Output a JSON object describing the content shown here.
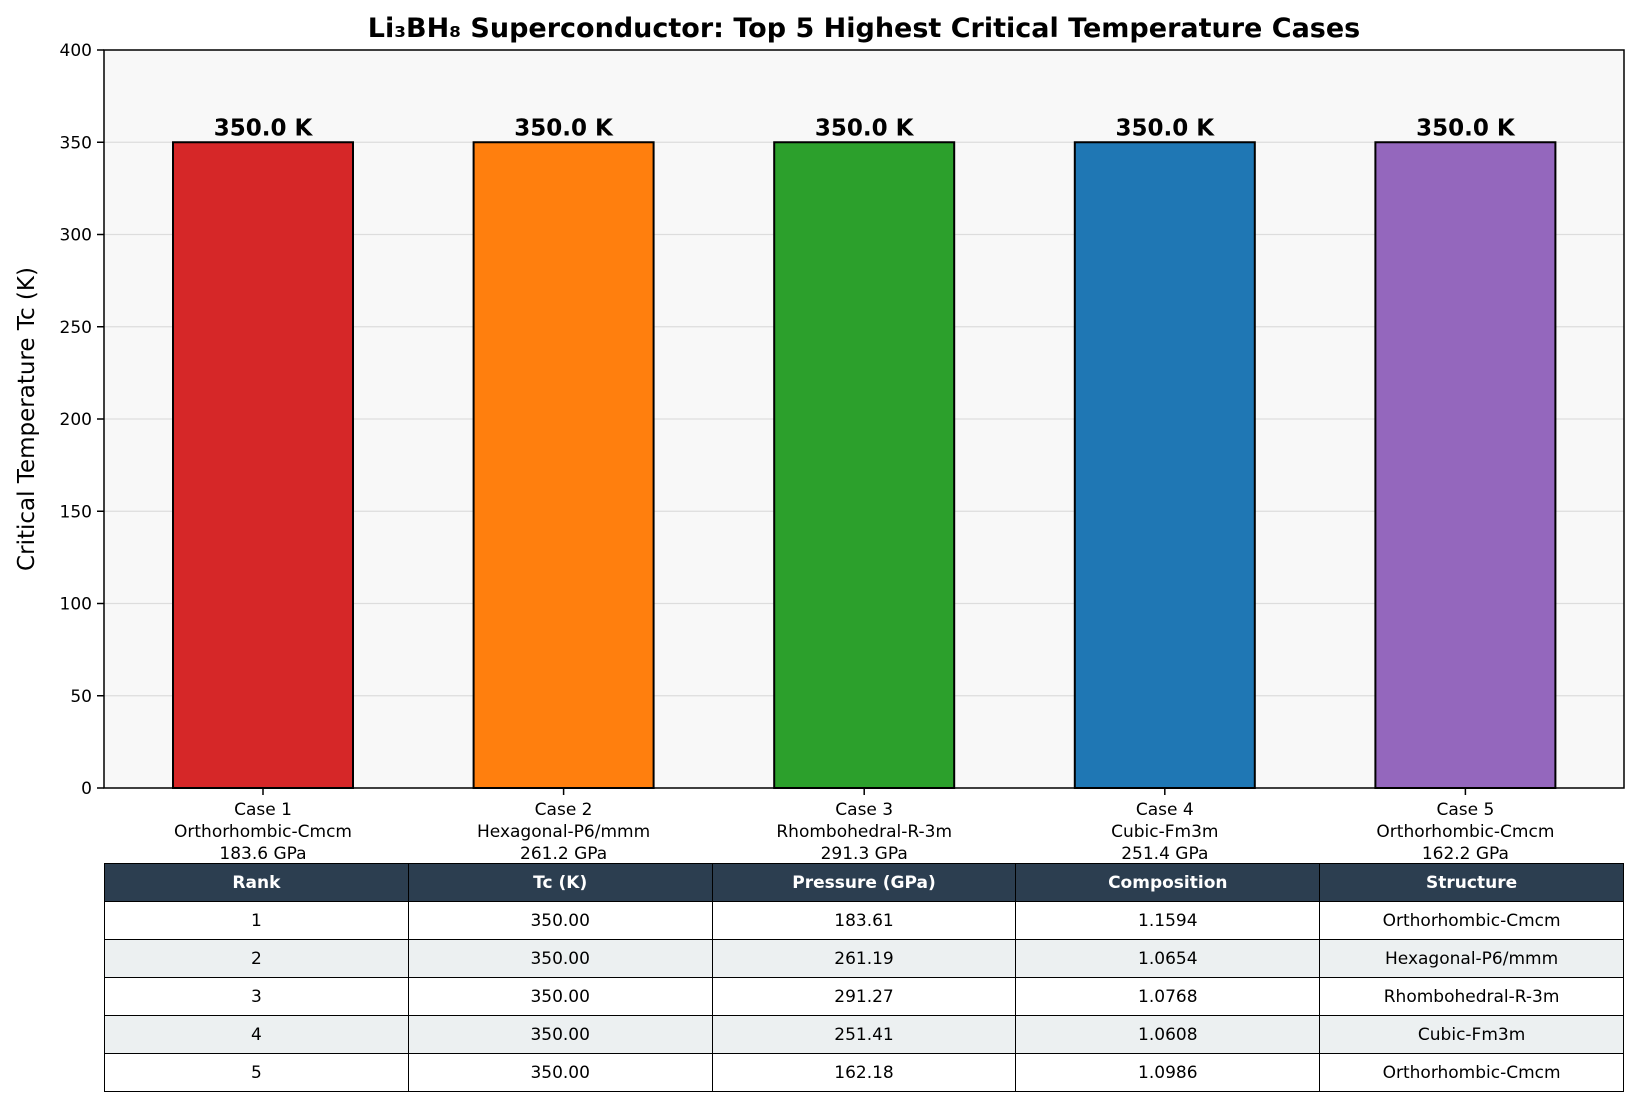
{
  "chart_data": {
    "type": "bar",
    "title": "Li₃BH₈ Superconductor: Top 5 Highest Critical Temperature Cases",
    "ylabel": "Critical Temperature Tc (K)",
    "ylim": [
      0,
      400
    ],
    "yticks": [
      "0",
      "50",
      "100",
      "150",
      "200",
      "250",
      "300",
      "350",
      "400"
    ],
    "ytick_values": [
      0,
      50,
      100,
      150,
      200,
      250,
      300,
      350,
      400
    ],
    "grid": "y",
    "categories": [
      {
        "case": "Case 1",
        "structure": "Orthorhombic-Cmcm",
        "pressure": "183.6 GPa",
        "comp": "Comp=1.159"
      },
      {
        "case": "Case 2",
        "structure": "Hexagonal-P6/mmm",
        "pressure": "261.2 GPa",
        "comp": "Comp=1.065"
      },
      {
        "case": "Case 3",
        "structure": "Rhombohedral-R-3m",
        "pressure": "291.3 GPa",
        "comp": "Comp=1.077"
      },
      {
        "case": "Case 4",
        "structure": "Cubic-Fm3m",
        "pressure": "251.4 GPa",
        "comp": "Comp=1.061"
      },
      {
        "case": "Case 5",
        "structure": "Orthorhombic-Cmcm",
        "pressure": "162.2 GPa",
        "comp": "Comp=1.099"
      }
    ],
    "values": [
      350.0,
      350.0,
      350.0,
      350.0,
      350.0
    ],
    "value_labels": [
      "350.0 K",
      "350.0 K",
      "350.0 K",
      "350.0 K",
      "350.0 K"
    ],
    "colors": [
      "#d62728",
      "#ff7f0e",
      "#2ca02c",
      "#1f77b4",
      "#9467bd"
    ]
  },
  "table": {
    "headers": [
      "Rank",
      "Tc (K)",
      "Pressure (GPa)",
      "Composition",
      "Structure"
    ],
    "rows": [
      [
        "1",
        "350.00",
        "183.61",
        "1.1594",
        "Orthorhombic-Cmcm"
      ],
      [
        "2",
        "350.00",
        "261.19",
        "1.0654",
        "Hexagonal-P6/mmm"
      ],
      [
        "3",
        "350.00",
        "291.27",
        "1.0768",
        "Rhombohedral-R-3m"
      ],
      [
        "4",
        "350.00",
        "251.41",
        "1.0608",
        "Cubic-Fm3m"
      ],
      [
        "5",
        "350.00",
        "162.18",
        "1.0986",
        "Orthorhombic-Cmcm"
      ]
    ],
    "header_color": "#2c3e50",
    "alt_row_color": "#ecf0f1"
  }
}
